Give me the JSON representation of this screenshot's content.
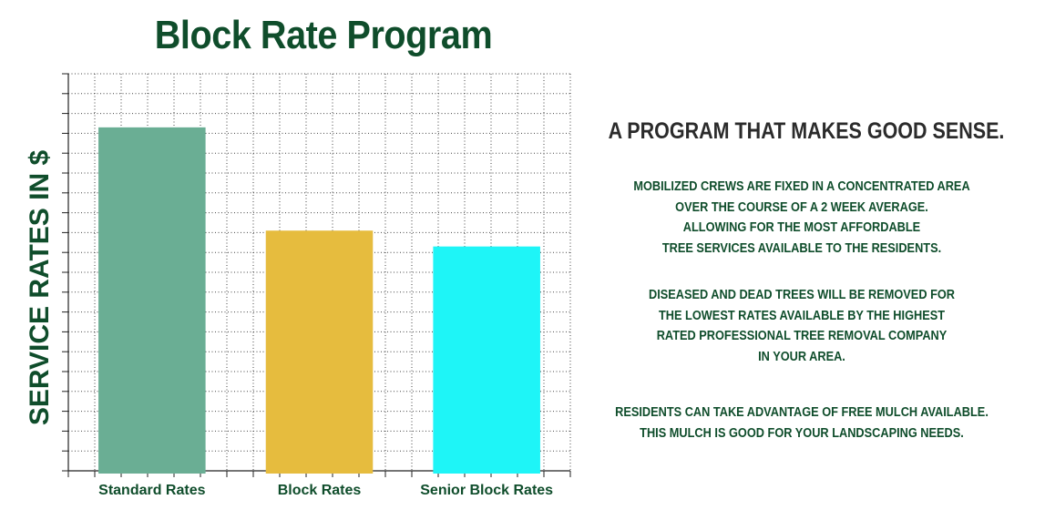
{
  "chart_data": {
    "type": "bar",
    "title": "Block Rate Program",
    "xlabel": "",
    "ylabel": "SERVICE RATES IN $",
    "categories": [
      "Standard Rates",
      "Block Rates",
      "Senior Block Rates"
    ],
    "values": [
      17.3,
      12.1,
      11.3
    ],
    "ylim": [
      0,
      20
    ],
    "grid": true,
    "colors": [
      "#6aae94",
      "#e6bc3e",
      "#1ef5f7"
    ]
  },
  "side_text": {
    "headline": "A PROGRAM THAT MAKES GOOD SENSE.",
    "paragraph1": [
      "MOBILIZED CREWS ARE FIXED IN A CONCENTRATED AREA",
      "OVER THE COURSE OF A 2 WEEK AVERAGE.",
      "ALLOWING FOR THE MOST AFFORDABLE",
      "TREE SERVICES AVAILABLE TO THE RESIDENTS."
    ],
    "paragraph2": [
      "DISEASED AND DEAD TREES WILL BE REMOVED FOR",
      "THE LOWEST RATES AVAILABLE BY THE HIGHEST",
      "RATED PROFESSIONAL TREE REMOVAL COMPANY",
      "IN YOUR AREA."
    ],
    "paragraph3": [
      "RESIDENTS CAN TAKE ADVANTAGE OF FREE MULCH AVAILABLE.",
      "THIS MULCH IS GOOD FOR YOUR LANDSCAPING NEEDS."
    ]
  }
}
